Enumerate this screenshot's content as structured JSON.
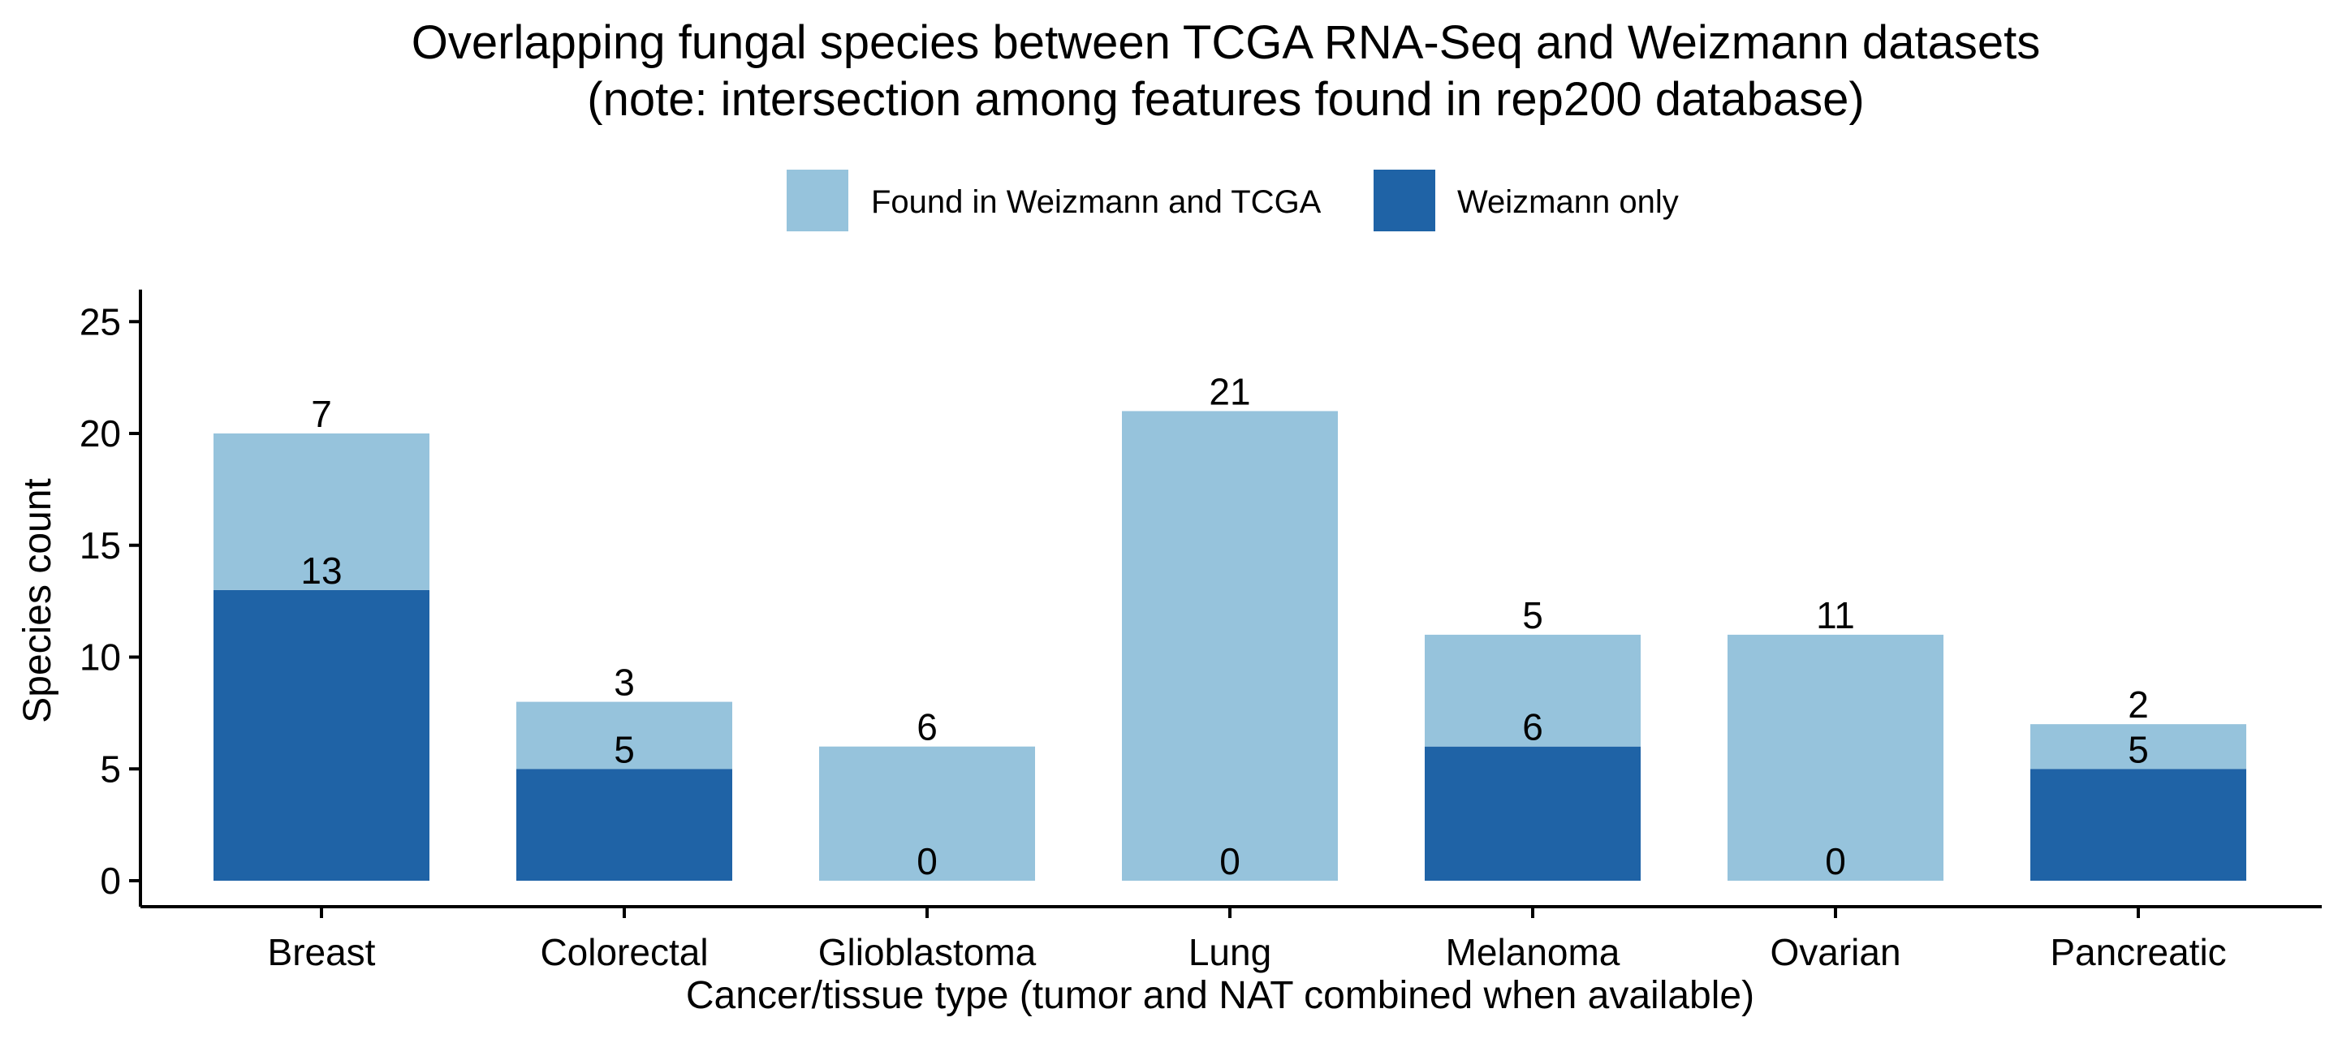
{
  "chart_data": {
    "type": "bar",
    "stacked": true,
    "title_line1": "Overlapping fungal species between TCGA RNA-Seq and Weizmann datasets",
    "title_line2": "(note: intersection among features found in rep200 database)",
    "xlabel": "Cancer/tissue type (tumor and NAT combined when available)",
    "ylabel": "Species count",
    "ylim": [
      0,
      26
    ],
    "yticks": [
      0,
      5,
      10,
      15,
      20,
      25
    ],
    "grid": false,
    "legend_position": "top",
    "categories": [
      "Breast",
      "Colorectal",
      "Glioblastoma",
      "Lung",
      "Melanoma",
      "Ovarian",
      "Pancreatic"
    ],
    "series": [
      {
        "name": "Weizmann only",
        "color": "#1f63a6",
        "values": [
          13,
          5,
          0,
          0,
          6,
          0,
          5
        ]
      },
      {
        "name": "Found in Weizmann and TCGA",
        "color": "#96c3dc",
        "values": [
          7,
          3,
          6,
          21,
          5,
          11,
          2
        ]
      }
    ],
    "legend_order": [
      "Found in Weizmann and TCGA",
      "Weizmann only"
    ]
  }
}
